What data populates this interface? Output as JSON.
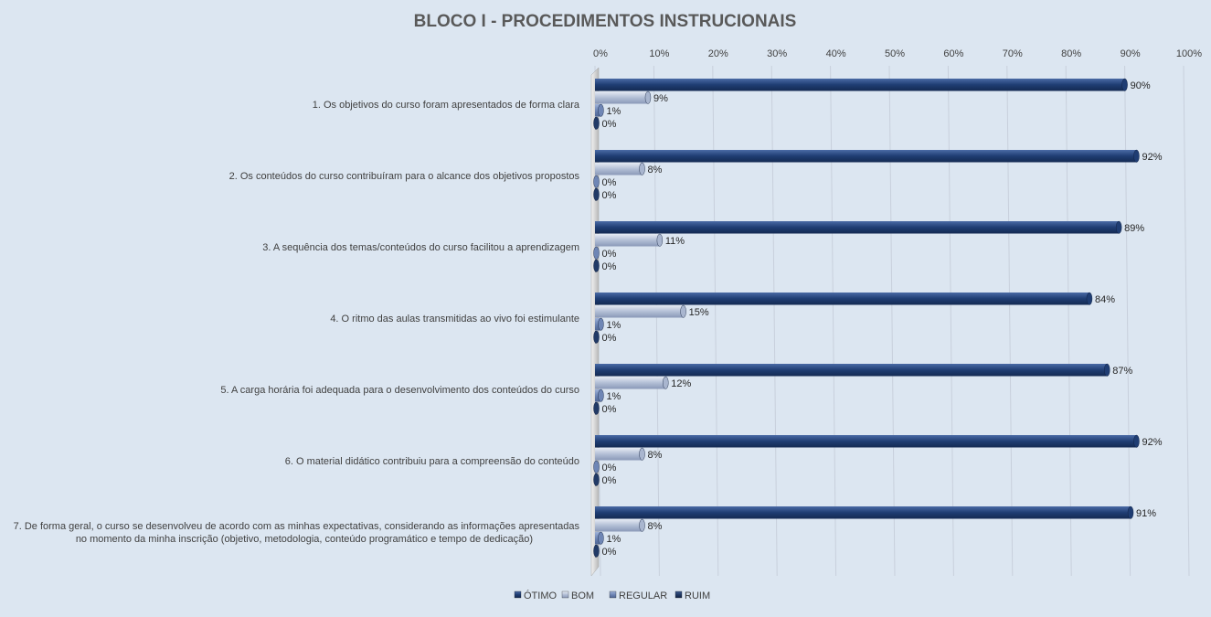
{
  "chart_data": {
    "type": "bar",
    "orientation": "horizontal",
    "title": "BLOCO I - PROCEDIMENTOS  INSTRUCIONAIS",
    "xlim": [
      0,
      100
    ],
    "x_ticks": [
      "0%",
      "10%",
      "20%",
      "30%",
      "40%",
      "50%",
      "60%",
      "70%",
      "80%",
      "90%",
      "100%"
    ],
    "grid": true,
    "legend_position": "bottom",
    "categories": [
      [
        "1. Os objetivos do curso foram apresentados de forma clara"
      ],
      [
        "2. Os conteúdos do curso contribuíram para o alcance dos objetivos propostos"
      ],
      [
        "3. A sequência dos temas/conteúdos do curso facilitou a aprendizagem"
      ],
      [
        "4. O ritmo das aulas transmitidas ao vivo foi estimulante"
      ],
      [
        "5. A carga horária foi adequada para o desenvolvimento dos conteúdos do curso"
      ],
      [
        "6. O material didático contribuiu para a compreensão do conteúdo"
      ],
      [
        "7. De forma geral, o curso se desenvolveu de acordo com as minhas expectativas, considerando as informações apresentadas",
        "no momento da minha inscrição (objetivo, metodologia, conteúdo programático e tempo de dedicação)"
      ]
    ],
    "series": [
      {
        "name": "ÓTIMO",
        "color": "#1f3d73",
        "values": [
          90,
          92,
          89,
          84,
          87,
          92,
          91
        ],
        "labels": [
          "90%",
          "92%",
          "89%",
          "84%",
          "87%",
          "92%",
          "91%"
        ]
      },
      {
        "name": "BOM",
        "color": "#a9b6cf",
        "values": [
          9,
          8,
          11,
          15,
          12,
          8,
          8
        ],
        "labels": [
          "9%",
          "8%",
          "11%",
          "15%",
          "12%",
          "8%",
          "8%"
        ]
      },
      {
        "name": "REGULAR",
        "color": "#6f86b5",
        "values": [
          1,
          0,
          0,
          1,
          1,
          0,
          1
        ],
        "labels": [
          "1%",
          "0%",
          "0%",
          "1%",
          "1%",
          "0%",
          "1%"
        ]
      },
      {
        "name": "RUIM",
        "color": "#223a66",
        "values": [
          0,
          0,
          0,
          0,
          0,
          0,
          0
        ],
        "labels": [
          "0%",
          "0%",
          "0%",
          "0%",
          "0%",
          "0%",
          "0%"
        ]
      }
    ]
  }
}
